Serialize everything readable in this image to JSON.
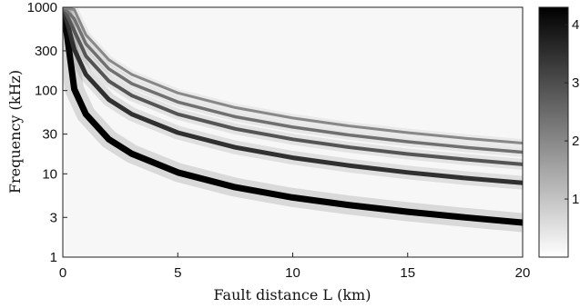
{
  "chart_data": {
    "type": "heatmap",
    "title": "",
    "xlabel": "Fault distance L (km)",
    "ylabel": "Frequency (kHz)",
    "xlim": [
      0,
      20
    ],
    "ylim": [
      1,
      1000
    ],
    "yscale": "log",
    "x_ticks": [
      "0",
      "5",
      "10",
      "15",
      "20"
    ],
    "y_ticks": [
      "1",
      "3",
      "10",
      "30",
      "100",
      "300",
      "1000"
    ],
    "colorbar": {
      "ticks": [
        "1",
        "2",
        "3",
        "4"
      ],
      "colormap": "white-to-black"
    },
    "series": [
      {
        "x": [
          0.5,
          1,
          2,
          3,
          5,
          7.5,
          10,
          12.5,
          15,
          17.5,
          20
        ],
        "y": [
          104,
          52,
          26,
          17.4,
          10.4,
          6.9,
          5.2,
          4.2,
          3.5,
          3.0,
          2.6
        ]
      },
      {
        "x": [
          0.5,
          1,
          2,
          3,
          5,
          7.5,
          10,
          12.5,
          15,
          17.5,
          20
        ],
        "y": [
          312,
          156,
          78,
          52,
          31.2,
          20.8,
          15.6,
          12.5,
          10.4,
          8.9,
          7.8
        ]
      },
      {
        "x": [
          0.5,
          1,
          2,
          3,
          5,
          7.5,
          10,
          12.5,
          15,
          17.5,
          20
        ],
        "y": [
          520,
          260,
          130,
          87,
          52,
          34.7,
          26,
          20.8,
          17.3,
          14.9,
          13
        ]
      },
      {
        "x": [
          0.5,
          1,
          2,
          3,
          5,
          7.5,
          10,
          12.5,
          15,
          17.5,
          20
        ],
        "y": [
          728,
          364,
          182,
          121,
          72.8,
          48.5,
          36.4,
          29.1,
          24.3,
          20.8,
          18.2
        ]
      },
      {
        "x": [
          0.5,
          1,
          2,
          3,
          5,
          7.5,
          10,
          12.5,
          15,
          17.5,
          20
        ],
        "y": [
          936,
          468,
          234,
          156,
          93.6,
          62.4,
          46.8,
          37.4,
          31.2,
          26.7,
          23.4
        ]
      }
    ]
  }
}
